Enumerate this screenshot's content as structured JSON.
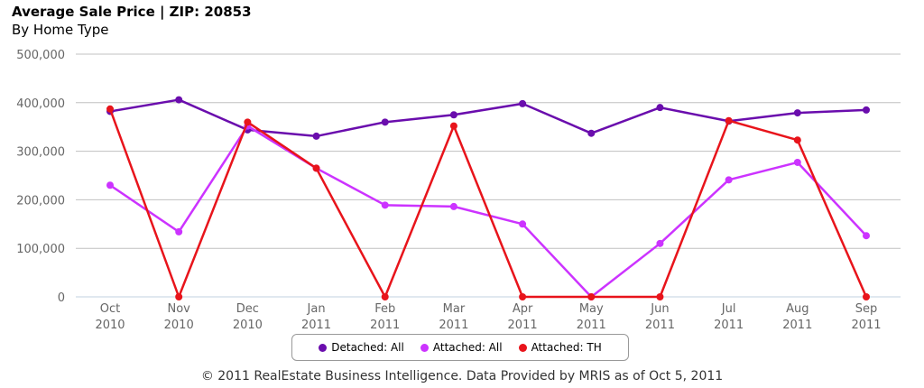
{
  "chart_data": {
    "type": "line",
    "title": "Average Sale Price | ZIP: 20853",
    "subtitle": "By Home Type",
    "categories": [
      [
        "Oct",
        "2010"
      ],
      [
        "Nov",
        "2010"
      ],
      [
        "Dec",
        "2010"
      ],
      [
        "Jan",
        "2011"
      ],
      [
        "Feb",
        "2011"
      ],
      [
        "Mar",
        "2011"
      ],
      [
        "Apr",
        "2011"
      ],
      [
        "May",
        "2011"
      ],
      [
        "Jun",
        "2011"
      ],
      [
        "Jul",
        "2011"
      ],
      [
        "Aug",
        "2011"
      ],
      [
        "Sep",
        "2011"
      ]
    ],
    "yticks": [
      "0",
      "100,000",
      "200,000",
      "300,000",
      "400,000",
      "500,000"
    ],
    "ylim": [
      0,
      500000
    ],
    "grid": true,
    "legend_position": "bottom",
    "series": [
      {
        "name": "Detached: All",
        "color": "#6a0dad",
        "values": [
          382000,
          406000,
          344000,
          331000,
          360000,
          375000,
          398000,
          337000,
          390000,
          362000,
          379000,
          385000
        ]
      },
      {
        "name": "Attached: All",
        "color": "#cc33ff",
        "values": [
          230000,
          134000,
          352000,
          265000,
          189000,
          186000,
          150000,
          0,
          110000,
          241000,
          277000,
          126000
        ]
      },
      {
        "name": "Attached: TH",
        "color": "#e8141b",
        "values": [
          387000,
          0,
          360000,
          265000,
          0,
          352000,
          0,
          0,
          0,
          363000,
          323000,
          0
        ]
      }
    ]
  },
  "footer": "© 2011 RealEstate Business Intelligence. Data Provided by MRIS as of Oct 5, 2011"
}
